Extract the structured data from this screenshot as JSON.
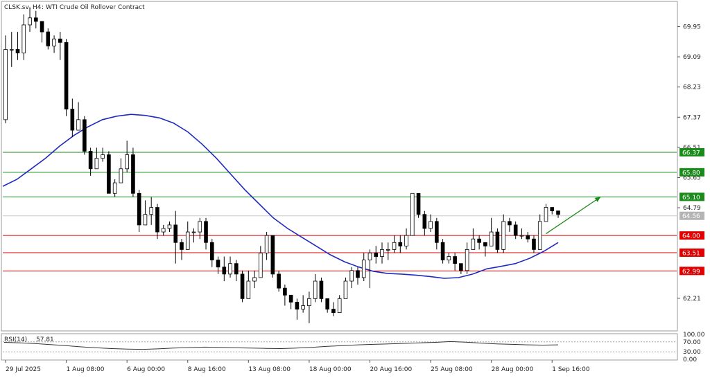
{
  "header": {
    "symbol": "CLSK.sv",
    "timeframe": "H4",
    "instrument_name": "WTI Crude Oil Rollover Contract"
  },
  "colors": {
    "background": "#ffffff",
    "candle_bull": "#ffffff",
    "candle_bear": "#000000",
    "ma_line": "#1f2bbf",
    "resistance": "#1a8a1a",
    "support": "#e00000",
    "arrow": "#1a8a1a",
    "rsi_line": "#333333",
    "current_price_line": "#c8c8c8"
  },
  "chart_data": [
    {
      "type": "candlestick",
      "symbol": "CLSK.sv",
      "timeframe": "H4",
      "title": "WTI Crude Oil Rollover Contract",
      "ylim": [
        61.3,
        70.65
      ],
      "y_ticks": [
        "69.95",
        "69.09",
        "68.23",
        "67.37",
        "66.51",
        "65.65",
        "64.79",
        "62.21"
      ],
      "x_ticks": [
        "29 Jul 2025",
        "1 Aug 08:00",
        "6 Aug 00:00",
        "8 Aug 16:00",
        "13 Aug 08:00",
        "18 Aug 00:00",
        "20 Aug 16:00",
        "25 Aug 08:00",
        "28 Aug 00:00",
        "1 Sep 16:00"
      ],
      "current_price": 64.56,
      "resistance_levels": [
        66.37,
        65.8,
        65.1
      ],
      "support_levels": [
        64.0,
        63.51,
        62.99
      ],
      "moving_average": [
        65.4,
        65.6,
        65.9,
        66.2,
        66.55,
        66.85,
        67.1,
        67.3,
        67.4,
        67.45,
        67.42,
        67.35,
        67.2,
        66.95,
        66.6,
        66.2,
        65.75,
        65.3,
        64.9,
        64.5,
        64.2,
        63.95,
        63.7,
        63.45,
        63.25,
        63.1,
        62.98,
        62.92,
        62.9,
        62.87,
        62.83,
        62.78,
        62.8,
        62.9,
        63.05,
        63.12,
        63.2,
        63.35,
        63.55,
        63.8
      ],
      "candles": [
        [
          67.3,
          69.3,
          69.7,
          67.2
        ],
        [
          69.3,
          69.3,
          69.8,
          68.8
        ],
        [
          69.3,
          69.2,
          69.8,
          69.0
        ],
        [
          69.2,
          70.0,
          70.3,
          69.0
        ],
        [
          70.0,
          70.2,
          70.5,
          69.8
        ],
        [
          70.2,
          70.1,
          70.4,
          69.9
        ],
        [
          70.1,
          69.8,
          70.1,
          69.5
        ],
        [
          69.8,
          69.4,
          69.9,
          69.3
        ],
        [
          69.4,
          69.6,
          69.7,
          69.2
        ],
        [
          69.6,
          69.5,
          69.8,
          69.0
        ],
        [
          69.5,
          67.6,
          69.6,
          67.4
        ],
        [
          67.6,
          67.0,
          67.9,
          66.8
        ],
        [
          67.0,
          67.3,
          67.8,
          67.0
        ],
        [
          67.3,
          66.4,
          67.4,
          66.3
        ],
        [
          66.4,
          65.9,
          66.5,
          65.7
        ],
        [
          65.9,
          66.2,
          66.5,
          65.9
        ],
        [
          66.2,
          66.3,
          66.5,
          66.1
        ],
        [
          66.3,
          65.2,
          66.4,
          65.2
        ],
        [
          65.2,
          65.5,
          65.6,
          65.1
        ],
        [
          65.5,
          65.9,
          66.2,
          65.5
        ],
        [
          65.9,
          66.3,
          66.7,
          65.8
        ],
        [
          66.3,
          65.2,
          66.5,
          65.1
        ],
        [
          65.2,
          64.3,
          65.3,
          64.1
        ],
        [
          64.3,
          64.6,
          65.0,
          64.4
        ],
        [
          64.6,
          64.8,
          65.1,
          64.3
        ],
        [
          64.8,
          64.1,
          64.9,
          63.9
        ],
        [
          64.1,
          64.2,
          64.3,
          64.0
        ],
        [
          64.2,
          64.3,
          64.4,
          64.1
        ],
        [
          64.3,
          63.8,
          64.7,
          63.2
        ],
        [
          63.8,
          63.6,
          63.9,
          63.3
        ],
        [
          63.6,
          64.1,
          64.4,
          63.6
        ],
        [
          64.1,
          64.1,
          64.2,
          63.8
        ],
        [
          64.1,
          64.4,
          64.5,
          63.9
        ],
        [
          64.4,
          63.8,
          64.5,
          63.6
        ],
        [
          63.8,
          63.3,
          63.9,
          63.1
        ],
        [
          63.3,
          63.1,
          63.4,
          62.9
        ],
        [
          63.1,
          62.9,
          63.4,
          62.7
        ],
        [
          62.9,
          63.2,
          63.4,
          62.8
        ],
        [
          63.2,
          62.9,
          63.3,
          62.7
        ],
        [
          62.9,
          62.2,
          63.0,
          62.1
        ],
        [
          62.2,
          62.7,
          63.0,
          62.2
        ],
        [
          62.7,
          62.8,
          63.0,
          62.5
        ],
        [
          62.8,
          63.5,
          63.7,
          62.8
        ],
        [
          63.5,
          64.0,
          64.1,
          63.3
        ],
        [
          64.0,
          62.9,
          64.0,
          62.8
        ],
        [
          62.9,
          62.5,
          63.0,
          62.4
        ],
        [
          62.5,
          62.3,
          62.6,
          62.0
        ],
        [
          62.3,
          62.1,
          62.3,
          61.9
        ],
        [
          62.1,
          61.9,
          62.2,
          61.6
        ],
        [
          61.9,
          62.0,
          62.3,
          61.8
        ],
        [
          62.0,
          62.2,
          62.4,
          61.5
        ],
        [
          62.2,
          62.7,
          62.9,
          62.1
        ],
        [
          62.7,
          62.2,
          62.8,
          62.1
        ],
        [
          62.2,
          61.9,
          62.2,
          61.8
        ],
        [
          61.9,
          61.8,
          62.1,
          61.7
        ],
        [
          61.8,
          62.2,
          62.3,
          61.8
        ],
        [
          62.2,
          62.7,
          62.8,
          62.2
        ],
        [
          62.7,
          63.0,
          63.1,
          62.5
        ],
        [
          63.0,
          62.8,
          63.1,
          62.6
        ],
        [
          62.8,
          63.3,
          63.5,
          62.7
        ],
        [
          63.3,
          63.5,
          63.6,
          62.5
        ],
        [
          63.5,
          63.4,
          63.7,
          63.2
        ],
        [
          63.4,
          63.6,
          63.8,
          63.2
        ],
        [
          63.6,
          63.6,
          63.8,
          63.3
        ],
        [
          63.6,
          63.8,
          64.0,
          63.5
        ],
        [
          63.8,
          63.7,
          64.0,
          63.5
        ],
        [
          63.7,
          64.0,
          64.2,
          63.6
        ],
        [
          64.0,
          65.2,
          65.2,
          64.0
        ],
        [
          65.2,
          64.6,
          65.2,
          64.5
        ],
        [
          64.6,
          64.2,
          64.7,
          64.0
        ],
        [
          64.2,
          64.4,
          64.6,
          64.1
        ],
        [
          64.4,
          63.8,
          64.5,
          63.6
        ],
        [
          63.8,
          63.3,
          63.9,
          63.2
        ],
        [
          63.3,
          63.4,
          63.5,
          63.2
        ],
        [
          63.4,
          63.2,
          63.5,
          63.0
        ],
        [
          63.2,
          63.0,
          63.2,
          62.9
        ],
        [
          63.0,
          63.6,
          63.8,
          62.9
        ],
        [
          63.6,
          63.9,
          64.2,
          63.6
        ],
        [
          63.9,
          63.8,
          64.0,
          63.6
        ],
        [
          63.8,
          63.7,
          63.8,
          63.4
        ],
        [
          63.7,
          64.1,
          64.5,
          63.7
        ],
        [
          64.1,
          63.6,
          64.2,
          63.5
        ],
        [
          63.6,
          64.4,
          64.6,
          63.5
        ],
        [
          64.4,
          64.3,
          64.5,
          64.1
        ],
        [
          64.3,
          64.0,
          64.4,
          63.9
        ],
        [
          64.0,
          64.0,
          64.2,
          63.9
        ],
        [
          64.0,
          63.9,
          64.1,
          63.8
        ],
        [
          63.9,
          63.6,
          64.0,
          63.5
        ],
        [
          63.6,
          64.4,
          64.6,
          63.6
        ],
        [
          64.4,
          64.8,
          64.9,
          64.4
        ],
        [
          64.8,
          64.7,
          64.8,
          64.6
        ],
        [
          64.7,
          64.6,
          64.7,
          64.5
        ]
      ],
      "rsi": {
        "label": "RSI(14)",
        "value": "57.81",
        "period": 14,
        "ylim": [
          0,
          100
        ],
        "levels": [
          70,
          30
        ],
        "tick_labels": [
          "100.00",
          "70.00",
          "30.00",
          "0.00"
        ],
        "values": [
          68,
          66,
          63,
          59,
          55,
          50,
          46,
          43,
          41,
          40,
          42,
          45,
          47,
          49,
          48,
          46,
          45,
          44,
          43,
          45,
          48,
          52,
          55,
          58,
          60,
          62,
          64,
          66,
          68,
          71,
          69,
          65,
          62,
          60,
          58,
          57,
          58
        ]
      },
      "annotations": {
        "arrow_from": [
          89,
          64.05
        ],
        "arrow_to": [
          98,
          65.1
        ],
        "arrow_label": ""
      }
    }
  ]
}
